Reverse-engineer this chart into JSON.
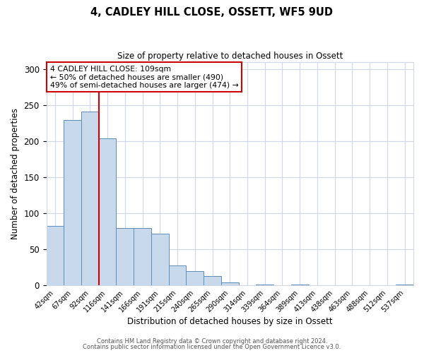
{
  "title": "4, CADLEY HILL CLOSE, OSSETT, WF5 9UD",
  "subtitle": "Size of property relative to detached houses in Ossett",
  "xlabel": "Distribution of detached houses by size in Ossett",
  "ylabel": "Number of detached properties",
  "bar_labels": [
    "42sqm",
    "67sqm",
    "92sqm",
    "116sqm",
    "141sqm",
    "166sqm",
    "191sqm",
    "215sqm",
    "240sqm",
    "265sqm",
    "290sqm",
    "314sqm",
    "339sqm",
    "364sqm",
    "389sqm",
    "413sqm",
    "438sqm",
    "463sqm",
    "488sqm",
    "512sqm",
    "537sqm"
  ],
  "bar_values": [
    83,
    230,
    241,
    204,
    80,
    80,
    72,
    28,
    20,
    13,
    4,
    0,
    1,
    0,
    1,
    0,
    0,
    0,
    0,
    0,
    1
  ],
  "bar_color": "#c8d9ec",
  "bar_edge_color": "#5b8db8",
  "background_color": "#ffffff",
  "grid_color": "#d0d8e8",
  "vline_x": 2.5,
  "vline_color": "#cc0000",
  "annotation_box_text": "4 CADLEY HILL CLOSE: 109sqm\n← 50% of detached houses are smaller (490)\n49% of semi-detached houses are larger (474) →",
  "annotation_box_edgecolor": "#cc0000",
  "ylim": [
    0,
    310
  ],
  "yticks": [
    0,
    50,
    100,
    150,
    200,
    250,
    300
  ],
  "footer_line1": "Contains HM Land Registry data © Crown copyright and database right 2024.",
  "footer_line2": "Contains public sector information licensed under the Open Government Licence v3.0."
}
